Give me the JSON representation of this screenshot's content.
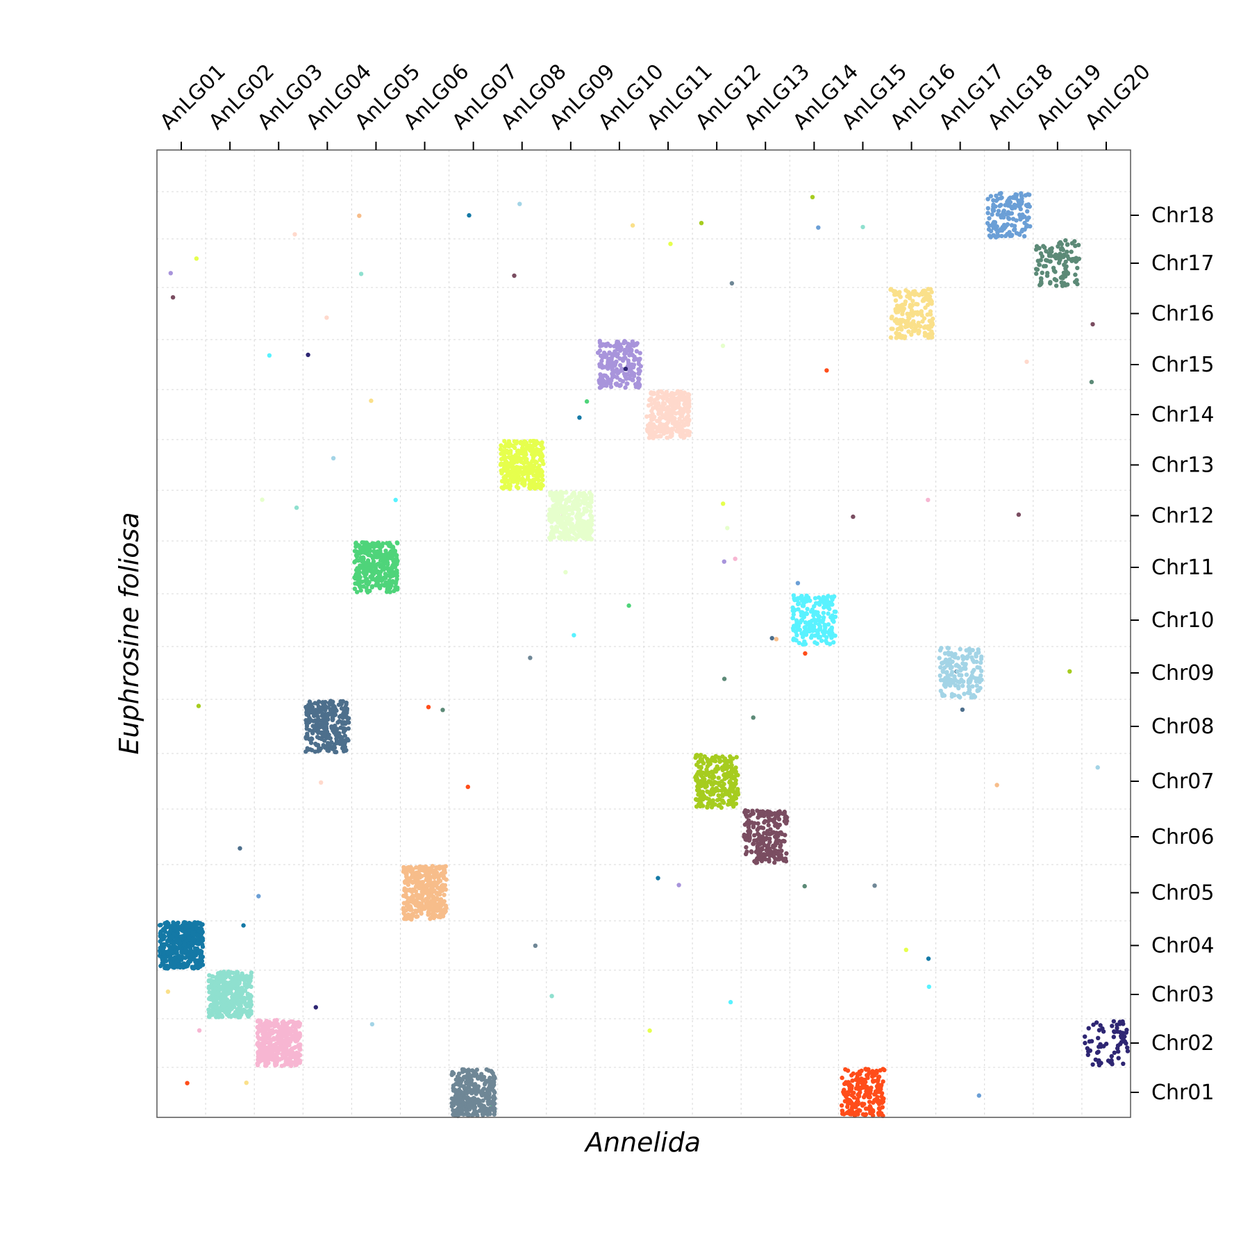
{
  "chart_data": {
    "type": "scatter",
    "xlabel": "Annelida",
    "ylabel": "Euphrosine foliosa",
    "x_categories": [
      "AnLG01",
      "AnLG02",
      "AnLG03",
      "AnLG04",
      "AnLG05",
      "AnLG06",
      "AnLG07",
      "AnLG08",
      "AnLG09",
      "AnLG10",
      "AnLG11",
      "AnLG12",
      "AnLG13",
      "AnLG14",
      "AnLG15",
      "AnLG16",
      "AnLG17",
      "AnLG18",
      "AnLG19",
      "AnLG20"
    ],
    "y_categories": [
      "Chr01",
      "Chr02",
      "Chr03",
      "Chr04",
      "Chr05",
      "Chr06",
      "Chr07",
      "Chr08",
      "Chr09",
      "Chr10",
      "Chr11",
      "Chr12",
      "Chr13",
      "Chr14",
      "Chr15",
      "Chr16",
      "Chr17",
      "Chr18"
    ],
    "x_axis_position": "top",
    "y_axis_position": "right",
    "grid": true,
    "clusters": [
      {
        "x": "AnLG01",
        "y": "Chr04",
        "color": "#1479a6",
        "count": 420
      },
      {
        "x": "AnLG02",
        "y": "Chr03",
        "color": "#8fe0cf",
        "count": 400
      },
      {
        "x": "AnLG03",
        "y": "Chr02",
        "color": "#f7b6d2",
        "count": 380
      },
      {
        "x": "AnLG04",
        "y": "Chr08",
        "color": "#4d6f8c",
        "count": 300
      },
      {
        "x": "AnLG05",
        "y": "Chr11",
        "color": "#4fd47a",
        "count": 320
      },
      {
        "x": "AnLG06",
        "y": "Chr05",
        "color": "#f7bd8a",
        "count": 340
      },
      {
        "x": "AnLG07",
        "y": "Chr01",
        "color": "#6f8796",
        "count": 320
      },
      {
        "x": "AnLG08",
        "y": "Chr13",
        "color": "#e6ff4d",
        "count": 320
      },
      {
        "x": "AnLG09",
        "y": "Chr12",
        "color": "#e6ffcc",
        "count": 320
      },
      {
        "x": "AnLG10",
        "y": "Chr15",
        "color": "#a894db",
        "count": 220
      },
      {
        "x": "AnLG11",
        "y": "Chr14",
        "color": "#ffd9cc",
        "count": 300
      },
      {
        "x": "AnLG12",
        "y": "Chr07",
        "color": "#a6cc1f",
        "count": 260
      },
      {
        "x": "AnLG13",
        "y": "Chr06",
        "color": "#7a4d61",
        "count": 220
      },
      {
        "x": "AnLG14",
        "y": "Chr10",
        "color": "#59f2ff",
        "count": 200
      },
      {
        "x": "AnLG15",
        "y": "Chr01",
        "color": "#ff4d1a",
        "count": 200
      },
      {
        "x": "AnLG16",
        "y": "Chr16",
        "color": "#fae08a",
        "count": 170
      },
      {
        "x": "AnLG17",
        "y": "Chr09",
        "color": "#a3d4e6",
        "count": 150
      },
      {
        "x": "AnLG18",
        "y": "Chr18",
        "color": "#6b9fd6",
        "count": 150
      },
      {
        "x": "AnLG19",
        "y": "Chr17",
        "color": "#5c8a77",
        "count": 110
      },
      {
        "x": "AnLG20",
        "y": "Chr02",
        "color": "#2e2673",
        "count": 70
      }
    ]
  }
}
